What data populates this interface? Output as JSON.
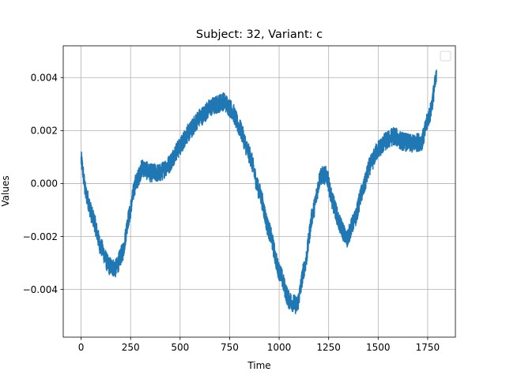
{
  "chart_data": {
    "type": "line",
    "title": "Subject: 32, Variant: c",
    "xlabel": "Time",
    "ylabel": "Values",
    "xlim": [
      -90,
      1890
    ],
    "ylim": [
      -0.0058,
      0.0052
    ],
    "xticks": [
      0,
      250,
      500,
      750,
      1000,
      1250,
      1500,
      1750
    ],
    "xtick_labels": [
      "0",
      "250",
      "500",
      "750",
      "1000",
      "1250",
      "1500",
      "1750"
    ],
    "yticks": [
      -0.004,
      -0.002,
      0.0,
      0.002,
      0.004
    ],
    "ytick_labels": [
      "−0.004",
      "−0.002",
      "0.000",
      "0.002",
      "0.004"
    ],
    "grid": true,
    "legend": "top-right (empty)",
    "series": [
      {
        "name": "",
        "color": "#1f77b4",
        "noise_amplitude": 0.00035,
        "points": [
          [
            0,
            0.0009
          ],
          [
            25,
            -0.0004
          ],
          [
            60,
            -0.0013
          ],
          [
            100,
            -0.0024
          ],
          [
            140,
            -0.0031
          ],
          [
            175,
            -0.0032
          ],
          [
            210,
            -0.0026
          ],
          [
            240,
            -0.0013
          ],
          [
            275,
            0.0
          ],
          [
            310,
            0.0006
          ],
          [
            350,
            0.0004
          ],
          [
            400,
            0.0004
          ],
          [
            440,
            0.0007
          ],
          [
            490,
            0.0013
          ],
          [
            540,
            0.0019
          ],
          [
            600,
            0.0025
          ],
          [
            660,
            0.0029
          ],
          [
            720,
            0.0031
          ],
          [
            760,
            0.0028
          ],
          [
            800,
            0.0021
          ],
          [
            850,
            0.0011
          ],
          [
            900,
            -0.0003
          ],
          [
            950,
            -0.0018
          ],
          [
            1000,
            -0.0033
          ],
          [
            1050,
            -0.0044
          ],
          [
            1090,
            -0.0046
          ],
          [
            1130,
            -0.0031
          ],
          [
            1170,
            -0.0011
          ],
          [
            1210,
            0.0003
          ],
          [
            1240,
            0.0003
          ],
          [
            1270,
            -0.0007
          ],
          [
            1310,
            -0.0016
          ],
          [
            1340,
            -0.0021
          ],
          [
            1380,
            -0.0014
          ],
          [
            1420,
            -0.0003
          ],
          [
            1460,
            0.0007
          ],
          [
            1500,
            0.0013
          ],
          [
            1540,
            0.0016
          ],
          [
            1580,
            0.0018
          ],
          [
            1620,
            0.0016
          ],
          [
            1670,
            0.0015
          ],
          [
            1720,
            0.0016
          ],
          [
            1760,
            0.0026
          ],
          [
            1795,
            0.004
          ]
        ]
      }
    ]
  }
}
